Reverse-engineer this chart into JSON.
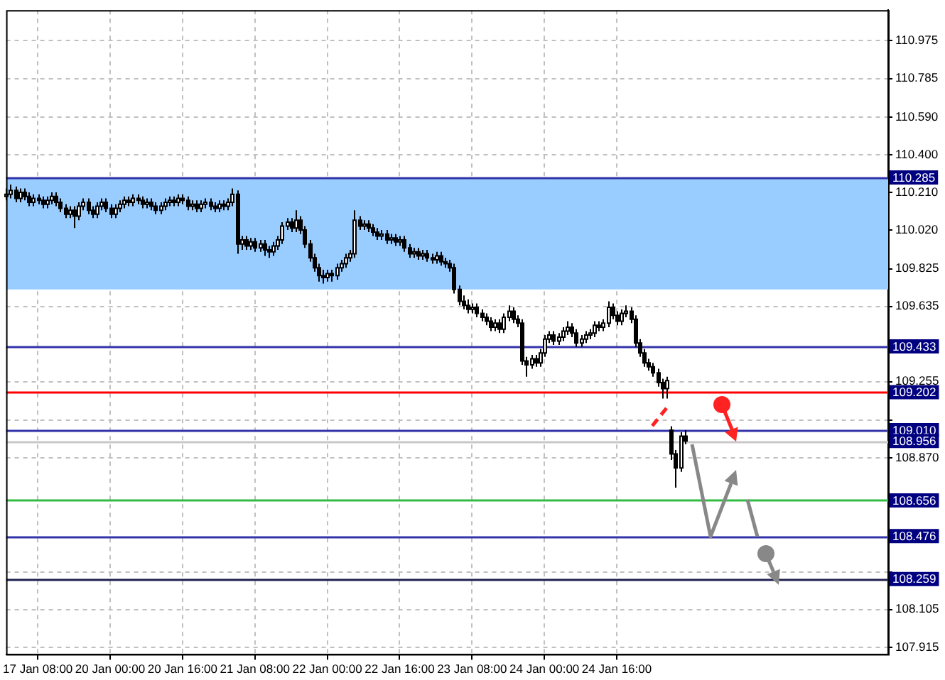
{
  "chart_data": {
    "type": "candlestick",
    "categories": [
      null,
      null,
      null,
      null,
      null,
      null,
      null,
      "17 Jan 08:00",
      null,
      null,
      null,
      null,
      null,
      null,
      null,
      null,
      null,
      null,
      null,
      null,
      null,
      null,
      null,
      "20 Jan 00:00",
      null,
      null,
      null,
      null,
      null,
      null,
      null,
      null,
      null,
      null,
      null,
      null,
      null,
      null,
      null,
      "20 Jan 16:00",
      null,
      null,
      null,
      null,
      null,
      null,
      null,
      null,
      null,
      null,
      null,
      null,
      null,
      null,
      null,
      "21 Jan 08:00",
      null,
      null,
      null,
      null,
      null,
      null,
      null,
      null,
      null,
      null,
      null,
      null,
      null,
      null,
      null,
      "22 Jan 00:00",
      null,
      null,
      null,
      null,
      null,
      null,
      null,
      null,
      null,
      null,
      null,
      null,
      null,
      null,
      null,
      "22 Jan 16:00",
      null,
      null,
      null,
      null,
      null,
      null,
      null,
      null,
      null,
      null,
      null,
      null,
      null,
      null,
      null,
      "23 Jan 08:00",
      null,
      null,
      null,
      null,
      null,
      null,
      null,
      null,
      null,
      null,
      null,
      null,
      null,
      null,
      null,
      "24 Jan 00:00",
      null,
      null,
      null,
      null,
      null,
      null,
      null,
      null,
      null,
      null,
      null,
      null,
      null,
      null,
      null,
      "24 Jan 16:00",
      null,
      null,
      null,
      null,
      null,
      null,
      null,
      null,
      null,
      null,
      null,
      null,
      null,
      null,
      null,
      null,
      null,
      null,
      null,
      null,
      null,
      null,
      null,
      null,
      null,
      null,
      null,
      null,
      null,
      null,
      null,
      null,
      null,
      null,
      null,
      null,
      null,
      null,
      null,
      null,
      null,
      null,
      null,
      null,
      null,
      null,
      null,
      null,
      null,
      null,
      null,
      null,
      null,
      null,
      null,
      null,
      null,
      null,
      null,
      null
    ],
    "ohlc": [
      [
        110.19,
        110.23,
        110.17,
        110.2
      ],
      [
        110.2,
        110.25,
        110.18,
        110.22
      ],
      [
        110.22,
        110.24,
        110.16,
        110.18
      ],
      [
        110.18,
        110.23,
        110.16,
        110.21
      ],
      [
        110.21,
        110.23,
        110.17,
        110.19
      ],
      [
        110.19,
        110.21,
        110.14,
        110.16
      ],
      [
        110.16,
        110.2,
        110.14,
        110.18
      ],
      [
        110.18,
        110.2,
        110.15,
        110.17
      ],
      [
        110.17,
        110.19,
        110.13,
        110.15
      ],
      [
        110.15,
        110.19,
        110.13,
        110.17
      ],
      [
        110.17,
        110.21,
        110.15,
        110.19
      ],
      [
        110.19,
        110.21,
        110.14,
        110.16
      ],
      [
        110.16,
        110.18,
        110.11,
        110.13
      ],
      [
        110.13,
        110.15,
        110.08,
        110.1
      ],
      [
        110.1,
        110.14,
        110.08,
        110.12
      ],
      [
        110.12,
        110.14,
        110.03,
        110.09
      ],
      [
        110.09,
        110.16,
        110.07,
        110.14
      ],
      [
        110.14,
        110.18,
        110.12,
        110.16
      ],
      [
        110.16,
        110.18,
        110.1,
        110.12
      ],
      [
        110.12,
        110.14,
        110.08,
        110.1
      ],
      [
        110.1,
        110.16,
        110.08,
        110.14
      ],
      [
        110.14,
        110.18,
        110.12,
        110.16
      ],
      [
        110.16,
        110.18,
        110.11,
        110.13
      ],
      [
        110.13,
        110.15,
        110.08,
        110.1
      ],
      [
        110.1,
        110.15,
        110.08,
        110.13
      ],
      [
        110.13,
        110.17,
        110.11,
        110.15
      ],
      [
        110.15,
        110.19,
        110.13,
        110.17
      ],
      [
        110.17,
        110.19,
        110.14,
        110.16
      ],
      [
        110.16,
        110.2,
        110.14,
        110.18
      ],
      [
        110.18,
        110.2,
        110.15,
        110.17
      ],
      [
        110.17,
        110.19,
        110.13,
        110.15
      ],
      [
        110.15,
        110.18,
        110.13,
        110.16
      ],
      [
        110.16,
        110.18,
        110.12,
        110.14
      ],
      [
        110.14,
        110.16,
        110.1,
        110.12
      ],
      [
        110.12,
        110.16,
        110.1,
        110.14
      ],
      [
        110.14,
        110.18,
        110.12,
        110.16
      ],
      [
        110.16,
        110.19,
        110.14,
        110.17
      ],
      [
        110.17,
        110.19,
        110.14,
        110.16
      ],
      [
        110.16,
        110.2,
        110.14,
        110.18
      ],
      [
        110.18,
        110.2,
        110.15,
        110.17
      ],
      [
        110.17,
        110.19,
        110.12,
        110.14
      ],
      [
        110.14,
        110.17,
        110.12,
        110.15
      ],
      [
        110.15,
        110.17,
        110.11,
        110.13
      ],
      [
        110.13,
        110.17,
        110.11,
        110.15
      ],
      [
        110.15,
        110.18,
        110.13,
        110.16
      ],
      [
        110.16,
        110.18,
        110.12,
        110.14
      ],
      [
        110.14,
        110.16,
        110.11,
        110.13
      ],
      [
        110.13,
        110.17,
        110.11,
        110.15
      ],
      [
        110.15,
        110.17,
        110.12,
        110.14
      ],
      [
        110.14,
        110.18,
        110.12,
        110.16
      ],
      [
        110.16,
        110.23,
        110.14,
        110.2
      ],
      [
        110.2,
        110.22,
        109.9,
        109.95
      ],
      [
        109.95,
        109.99,
        109.92,
        109.97
      ],
      [
        109.97,
        109.99,
        109.92,
        109.94
      ],
      [
        109.94,
        109.98,
        109.92,
        109.96
      ],
      [
        109.96,
        109.98,
        109.91,
        109.93
      ],
      [
        109.93,
        109.97,
        109.91,
        109.95
      ],
      [
        109.95,
        109.97,
        109.89,
        109.92
      ],
      [
        109.92,
        109.94,
        109.88,
        109.91
      ],
      [
        109.91,
        109.96,
        109.89,
        109.94
      ],
      [
        109.94,
        109.99,
        109.92,
        109.97
      ],
      [
        109.97,
        110.06,
        109.95,
        110.04
      ],
      [
        110.04,
        110.08,
        110.02,
        110.06
      ],
      [
        110.06,
        110.08,
        110.01,
        110.03
      ],
      [
        110.03,
        110.12,
        110.01,
        110.07
      ],
      [
        110.07,
        110.09,
        110.0,
        110.02
      ],
      [
        110.02,
        110.04,
        109.93,
        109.95
      ],
      [
        109.95,
        109.97,
        109.86,
        109.88
      ],
      [
        109.88,
        109.9,
        109.81,
        109.83
      ],
      [
        109.83,
        109.85,
        109.76,
        109.79
      ],
      [
        109.79,
        109.82,
        109.75,
        109.78
      ],
      [
        109.78,
        109.82,
        109.76,
        109.8
      ],
      [
        109.8,
        109.82,
        109.76,
        109.79
      ],
      [
        109.79,
        109.85,
        109.77,
        109.83
      ],
      [
        109.83,
        109.87,
        109.81,
        109.85
      ],
      [
        109.85,
        109.9,
        109.83,
        109.88
      ],
      [
        109.88,
        109.92,
        109.86,
        109.9
      ],
      [
        109.9,
        110.12,
        109.88,
        110.07
      ],
      [
        110.07,
        110.09,
        110.02,
        110.04
      ],
      [
        110.04,
        110.07,
        110.02,
        110.05
      ],
      [
        110.05,
        110.07,
        110.01,
        110.03
      ],
      [
        110.03,
        110.05,
        109.99,
        110.01
      ],
      [
        110.01,
        110.03,
        109.97,
        109.99
      ],
      [
        109.99,
        110.02,
        109.97,
        110.0
      ],
      [
        110.0,
        110.02,
        109.95,
        109.97
      ],
      [
        109.97,
        110.0,
        109.95,
        109.98
      ],
      [
        109.98,
        110.0,
        109.94,
        109.96
      ],
      [
        109.96,
        109.99,
        109.94,
        109.97
      ],
      [
        109.97,
        109.99,
        109.91,
        109.93
      ],
      [
        109.93,
        109.95,
        109.88,
        109.9
      ],
      [
        109.9,
        109.93,
        109.88,
        109.91
      ],
      [
        109.91,
        109.93,
        109.87,
        109.89
      ],
      [
        109.89,
        109.92,
        109.87,
        109.9
      ],
      [
        109.9,
        109.92,
        109.86,
        109.88
      ],
      [
        109.88,
        109.9,
        109.85,
        109.87
      ],
      [
        109.87,
        109.91,
        109.85,
        109.89
      ],
      [
        109.89,
        109.91,
        109.84,
        109.86
      ],
      [
        109.86,
        109.88,
        109.83,
        109.85
      ],
      [
        109.85,
        109.87,
        109.81,
        109.83
      ],
      [
        109.83,
        109.85,
        109.7,
        109.72
      ],
      [
        109.72,
        109.74,
        109.64,
        109.66
      ],
      [
        109.66,
        109.69,
        109.62,
        109.64
      ],
      [
        109.64,
        109.67,
        109.6,
        109.62
      ],
      [
        109.62,
        109.65,
        109.6,
        109.63
      ],
      [
        109.63,
        109.65,
        109.58,
        109.6
      ],
      [
        109.6,
        109.62,
        109.56,
        109.58
      ],
      [
        109.58,
        109.6,
        109.54,
        109.56
      ],
      [
        109.56,
        109.58,
        109.51,
        109.53
      ],
      [
        109.53,
        109.57,
        109.51,
        109.55
      ],
      [
        109.55,
        109.57,
        109.5,
        109.52
      ],
      [
        109.52,
        109.6,
        109.5,
        109.58
      ],
      [
        109.58,
        109.64,
        109.56,
        109.61
      ],
      [
        109.61,
        109.63,
        109.55,
        109.57
      ],
      [
        109.57,
        109.59,
        109.53,
        109.55
      ],
      [
        109.55,
        109.57,
        109.34,
        109.36
      ],
      [
        109.36,
        109.38,
        109.28,
        109.34
      ],
      [
        109.34,
        109.39,
        109.32,
        109.37
      ],
      [
        109.37,
        109.39,
        109.33,
        109.35
      ],
      [
        109.35,
        109.42,
        109.33,
        109.4
      ],
      [
        109.4,
        109.49,
        109.38,
        109.47
      ],
      [
        109.47,
        109.51,
        109.45,
        109.49
      ],
      [
        109.49,
        109.51,
        109.44,
        109.46
      ],
      [
        109.46,
        109.5,
        109.44,
        109.48
      ],
      [
        109.48,
        109.53,
        109.46,
        109.51
      ],
      [
        109.51,
        109.56,
        109.49,
        109.53
      ],
      [
        109.53,
        109.55,
        109.48,
        109.5
      ],
      [
        109.5,
        109.52,
        109.43,
        109.45
      ],
      [
        109.45,
        109.49,
        109.43,
        109.47
      ],
      [
        109.47,
        109.51,
        109.45,
        109.49
      ],
      [
        109.49,
        109.52,
        109.47,
        109.5
      ],
      [
        109.5,
        109.56,
        109.48,
        109.54
      ],
      [
        109.54,
        109.56,
        109.51,
        109.53
      ],
      [
        109.53,
        109.57,
        109.51,
        109.55
      ],
      [
        109.55,
        109.66,
        109.53,
        109.63
      ],
      [
        109.63,
        109.65,
        109.57,
        109.59
      ],
      [
        109.59,
        109.61,
        109.54,
        109.56
      ],
      [
        109.56,
        109.62,
        109.54,
        109.6
      ],
      [
        109.6,
        109.64,
        109.58,
        109.61
      ],
      [
        109.61,
        109.63,
        109.55,
        109.57
      ],
      [
        109.57,
        109.59,
        109.43,
        109.45
      ],
      [
        109.45,
        109.47,
        109.38,
        109.4
      ],
      [
        109.4,
        109.42,
        109.33,
        109.35
      ],
      [
        109.35,
        109.37,
        109.31,
        109.33
      ],
      [
        109.33,
        109.35,
        109.28,
        109.3
      ],
      [
        109.3,
        109.32,
        109.23,
        109.25
      ],
      [
        109.25,
        109.27,
        109.17,
        109.22
      ],
      [
        109.22,
        109.28,
        109.17,
        109.26
      ],
      [
        109.01,
        109.03,
        108.86,
        108.89
      ],
      [
        108.89,
        108.91,
        108.72,
        108.82
      ],
      [
        108.82,
        109.0,
        108.8,
        108.98
      ],
      [
        108.98,
        109.01,
        108.94,
        108.956
      ],
      null,
      null,
      null,
      null,
      null,
      null,
      null,
      null,
      null,
      null,
      null,
      null,
      null,
      null,
      null,
      null,
      null,
      null,
      null,
      null,
      null,
      null,
      null,
      null,
      null,
      null,
      null,
      null,
      null,
      null,
      null,
      null,
      null,
      null,
      null,
      null,
      null,
      null,
      null,
      null,
      null,
      null,
      null,
      null,
      null
    ],
    "ylim": [
      107.88,
      111.13
    ],
    "yticks": [
      110.975,
      110.785,
      {
        "value": 110.59,
        "label": "110.590"
      },
      {
        "value": 110.4,
        "label": "110.400"
      },
      {
        "value": 110.21,
        "label": "110.210"
      },
      {
        "value": 110.02,
        "label": "110.020"
      },
      109.825,
      109.635,
      109.255,
      {
        "value": 109.06,
        "label": null
      },
      {
        "value": 108.87,
        "label": "108.870"
      },
      {
        "value": 108.295,
        "label": null
      },
      108.105,
      107.915
    ],
    "grid": true,
    "bands": [
      {
        "axis": "y",
        "from": 109.72,
        "to": 110.285,
        "color": "#99ccff"
      }
    ],
    "ref_lines": [
      {
        "axis": "y",
        "value": 110.285,
        "label": "110.285",
        "color": "#3333aa"
      },
      {
        "axis": "y",
        "value": 109.433,
        "label": "109.433",
        "color": "#3333aa"
      },
      {
        "axis": "y",
        "value": 109.202,
        "label": "109.202",
        "color": "#ff0000"
      },
      {
        "axis": "y",
        "value": 109.01,
        "label": "109.010",
        "color": "#3333aa"
      },
      {
        "axis": "y",
        "value": 108.956,
        "label": "108.956",
        "color": "#c8c8c8"
      },
      {
        "axis": "y",
        "value": 108.656,
        "label": "108.656",
        "color": "#33bb44"
      },
      {
        "axis": "y",
        "value": 108.476,
        "label": "108.476",
        "color": "#3333aa"
      },
      {
        "axis": "y",
        "value": 108.259,
        "label": "108.259",
        "color": "#202050"
      }
    ]
  }
}
